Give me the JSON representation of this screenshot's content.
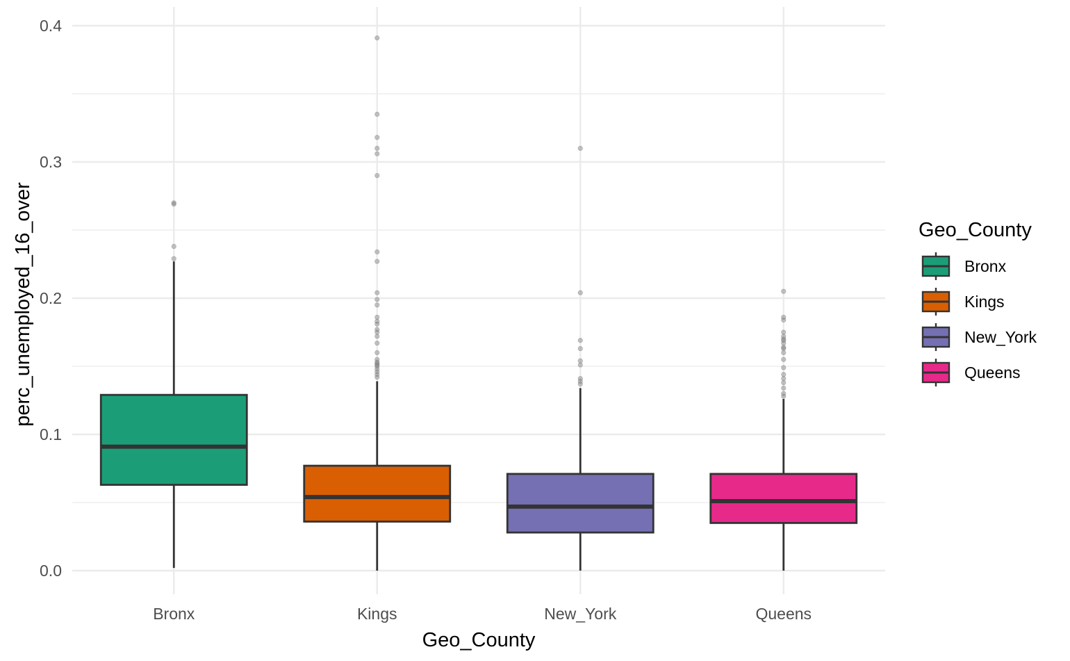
{
  "chart_data": {
    "type": "boxplot",
    "xlabel": "Geo_County",
    "ylabel": "perc_unemployed_16_over",
    "ylim": [
      -0.033,
      0.41
    ],
    "y_ticks": [
      0.0,
      0.1,
      0.2,
      0.3,
      0.4
    ],
    "y_tick_labels": [
      "0.0",
      "0.1",
      "0.2",
      "0.3",
      "0.4"
    ],
    "y_minor_ticks": [
      0.05,
      0.15,
      0.25,
      0.35
    ],
    "grid": true,
    "legend": {
      "title": "Geo_County",
      "position": "right"
    },
    "categories": [
      "Bronx",
      "Kings",
      "New_York",
      "Queens"
    ],
    "series": [
      {
        "name": "Bronx",
        "color": "#1b9e77",
        "whisker_low": 0.002,
        "q1": 0.063,
        "median": 0.091,
        "q3": 0.129,
        "whisker_high": 0.227,
        "outliers": [
          0.229,
          0.238,
          0.269,
          0.27
        ]
      },
      {
        "name": "Kings",
        "color": "#d95f02",
        "whisker_low": 0.0,
        "q1": 0.036,
        "median": 0.054,
        "q3": 0.077,
        "whisker_high": 0.139,
        "outliers": [
          0.142,
          0.144,
          0.146,
          0.148,
          0.15,
          0.151,
          0.152,
          0.153,
          0.155,
          0.16,
          0.167,
          0.172,
          0.175,
          0.177,
          0.181,
          0.183,
          0.186,
          0.195,
          0.199,
          0.204,
          0.227,
          0.234,
          0.29,
          0.306,
          0.31,
          0.318,
          0.335,
          0.391
        ]
      },
      {
        "name": "New_York",
        "color": "#7570b3",
        "whisker_low": 0.0,
        "q1": 0.028,
        "median": 0.047,
        "q3": 0.071,
        "whisker_high": 0.134,
        "outliers": [
          0.137,
          0.139,
          0.141,
          0.151,
          0.154,
          0.163,
          0.169,
          0.204,
          0.31
        ]
      },
      {
        "name": "Queens",
        "color": "#e7298a",
        "whisker_low": 0.0,
        "q1": 0.035,
        "median": 0.051,
        "q3": 0.071,
        "whisker_high": 0.126,
        "outliers": [
          0.128,
          0.13,
          0.134,
          0.138,
          0.141,
          0.144,
          0.149,
          0.155,
          0.16,
          0.163,
          0.164,
          0.167,
          0.169,
          0.17,
          0.172,
          0.175,
          0.184,
          0.186,
          0.205
        ]
      }
    ]
  }
}
